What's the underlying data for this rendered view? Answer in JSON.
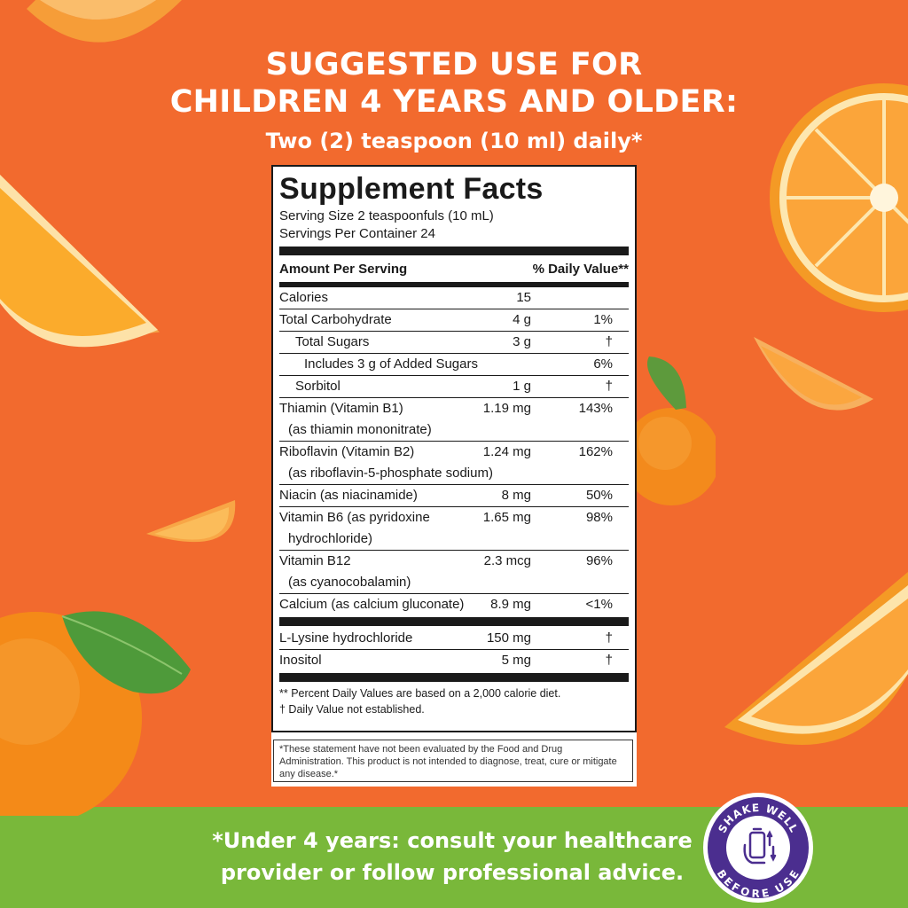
{
  "headline": {
    "line1": "SUGGESTED USE FOR",
    "line2": "CHILDREN 4 YEARS AND OLDER:"
  },
  "dosage": "Two (2) teaspoon (10 ml) daily*",
  "facts": {
    "title": "Supplement Facts",
    "serving_size": "Serving Size 2 teaspoonfuls (10 mL)",
    "servings_per_container": "Servings Per Container 24",
    "header_amount": "Amount Per Serving",
    "header_dv": "% Daily Value**",
    "rows": {
      "calories": {
        "name": "Calories",
        "amount": "15",
        "dv": ""
      },
      "carb": {
        "name": "Total Carbohydrate",
        "amount": "4 g",
        "dv": "1%"
      },
      "sugars": {
        "name": "Total Sugars",
        "amount": "3 g",
        "dv": "†"
      },
      "added": {
        "name": "Includes 3 g of Added Sugars",
        "amount": "",
        "dv": "6%"
      },
      "sorbitol": {
        "name": "Sorbitol",
        "amount": "1 g",
        "dv": "†"
      },
      "thiamin": {
        "name": "Thiamin (Vitamin B1)",
        "sub": "(as thiamin mononitrate)",
        "amount": "1.19 mg",
        "dv": "143%"
      },
      "riboflavin": {
        "name": "Riboflavin (Vitamin B2)",
        "sub": "(as riboflavin-5-phosphate sodium)",
        "amount": "1.24 mg",
        "dv": "162%"
      },
      "niacin": {
        "name": "Niacin (as niacinamide)",
        "amount": "8 mg",
        "dv": "50%"
      },
      "b6": {
        "name": "Vitamin B6 (as pyridoxine",
        "sub": "hydrochloride)",
        "amount": "1.65 mg",
        "dv": "98%"
      },
      "b12": {
        "name": "Vitamin B12",
        "sub": "(as cyanocobalamin)",
        "amount": "2.3 mcg",
        "dv": "96%"
      },
      "calcium": {
        "name": "Calcium (as calcium gluconate)",
        "amount": "8.9 mg",
        "dv": "<1%"
      },
      "lysine": {
        "name": "L-Lysine hydrochloride",
        "amount": "150 mg",
        "dv": "†"
      },
      "inositol": {
        "name": "Inositol",
        "amount": "5 mg",
        "dv": "†"
      }
    },
    "footnote1": "** Percent Daily Values are based on a 2,000 calorie diet.",
    "footnote2": "† Daily Value not established."
  },
  "disclaimer": "*These statement have not been evaluated by the Food and Drug Administration. This product is not intended to diagnose, treat, cure or mitigate any disease.*",
  "bottom": {
    "line1": "*Under 4 years: consult your healthcare",
    "line2": "provider or follow professional advice."
  },
  "badge": {
    "top": "SHAKE WELL",
    "bottom": "BEFORE USE"
  },
  "colors": {
    "background": "#f26a2e",
    "footer": "#79b83a",
    "badge": "#4b2e8f"
  }
}
